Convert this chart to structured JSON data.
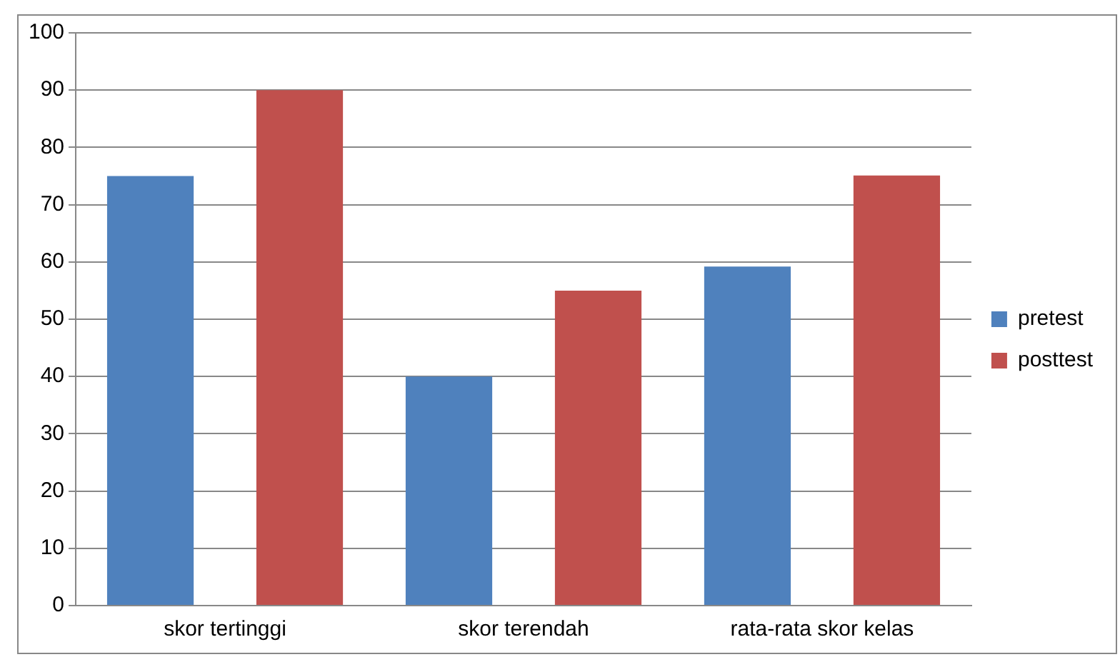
{
  "chart_data": {
    "type": "bar",
    "categories": [
      "skor tertinggi",
      "skor terendah",
      "rata-rata skor kelas"
    ],
    "series": [
      {
        "name": "pretest",
        "color": "#4f81bd",
        "values": [
          75,
          40,
          59.2
        ]
      },
      {
        "name": "posttest",
        "color": "#c0504d",
        "values": [
          90,
          55,
          75.1
        ]
      }
    ],
    "ylim": [
      0,
      100
    ],
    "yticks": [
      0,
      10,
      20,
      30,
      40,
      50,
      60,
      70,
      80,
      90,
      100
    ],
    "grid": "y",
    "legend": "right"
  }
}
